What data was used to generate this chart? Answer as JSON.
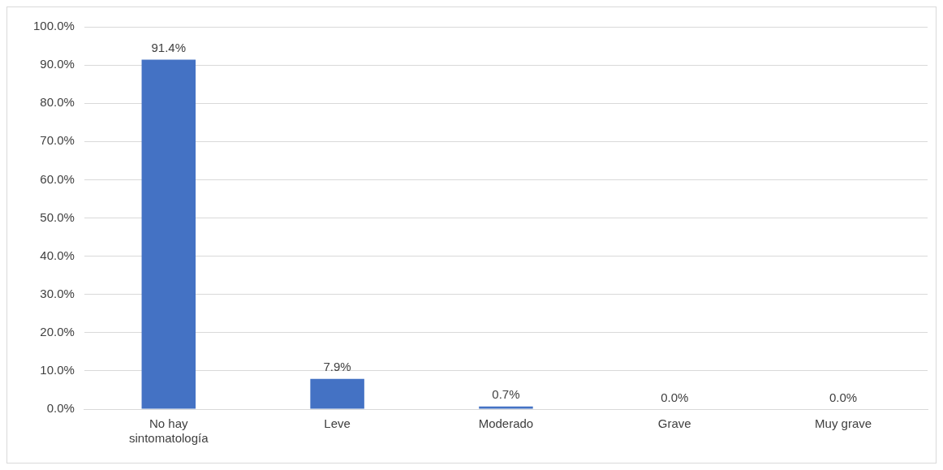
{
  "chart_data": {
    "type": "bar",
    "categories": [
      "No hay sintomatología",
      "Leve",
      "Moderado",
      "Grave",
      "Muy grave"
    ],
    "values": [
      91.4,
      7.9,
      0.7,
      0.0,
      0.0
    ],
    "value_labels": [
      "91.4%",
      "7.9%",
      "0.7%",
      "0.0%",
      "0.0%"
    ],
    "color": "#4472c4",
    "ylim": [
      0,
      100
    ],
    "yticks": [
      {
        "value": 0,
        "label": "0.0%"
      },
      {
        "value": 10,
        "label": "10.0%"
      },
      {
        "value": 20,
        "label": "20.0%"
      },
      {
        "value": 30,
        "label": "30.0%"
      },
      {
        "value": 40,
        "label": "40.0%"
      },
      {
        "value": 50,
        "label": "50.0%"
      },
      {
        "value": 60,
        "label": "60.0%"
      },
      {
        "value": 70,
        "label": "70.0%"
      },
      {
        "value": 80,
        "label": "80.0%"
      },
      {
        "value": 90,
        "label": "90.0%"
      },
      {
        "value": 100,
        "label": "100.0%"
      }
    ],
    "grid": "y",
    "legend": false
  }
}
